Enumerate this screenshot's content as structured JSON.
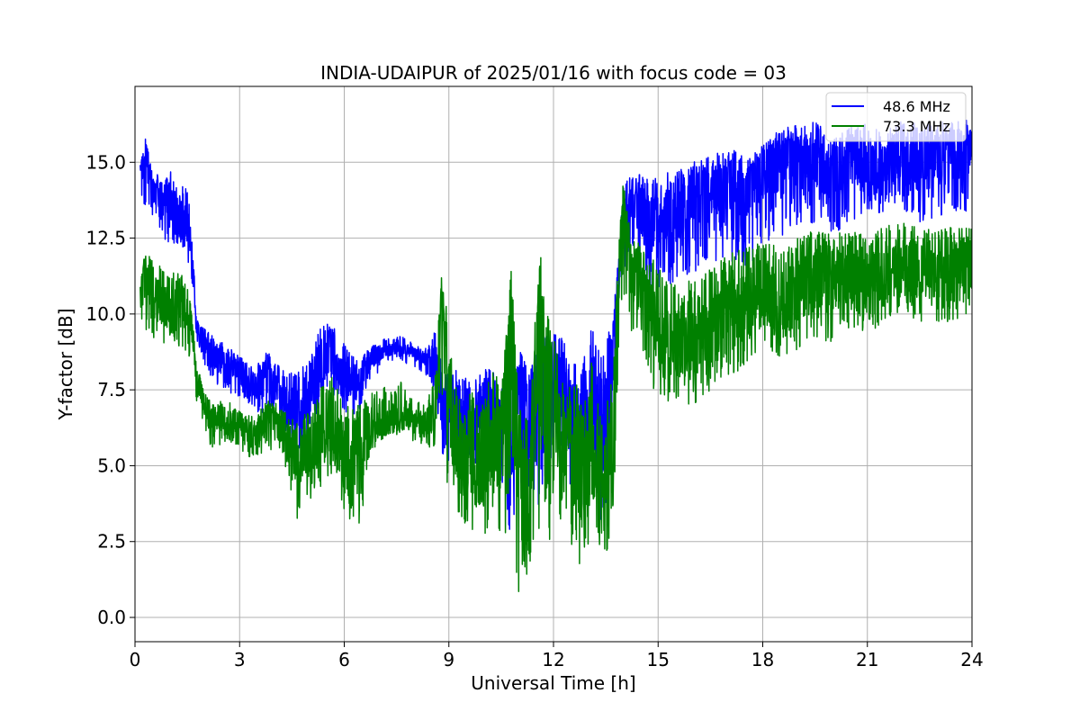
{
  "chart_data": {
    "type": "line",
    "title": "INDIA-UDAIPUR of 2025/01/16 with focus code = 03",
    "xlabel": "Universal Time [h]",
    "ylabel": "Y-factor [dB]",
    "xlim": [
      0,
      24
    ],
    "ylim": [
      -0.8,
      17.5
    ],
    "xticks": [
      0,
      3,
      6,
      9,
      12,
      15,
      18,
      21,
      24
    ],
    "xtick_labels": [
      "0",
      "3",
      "6",
      "9",
      "12",
      "15",
      "18",
      "21",
      "24"
    ],
    "yticks": [
      0,
      2.5,
      5,
      7.5,
      10,
      12.5,
      15
    ],
    "ytick_labels": [
      "0.0",
      "2.5",
      "5.0",
      "7.5",
      "10.0",
      "12.5",
      "15.0"
    ],
    "grid": true,
    "legend_position": "top-right",
    "series": [
      {
        "name": "48.6 MHz",
        "color": "#0000ff",
        "x": [
          0.15,
          0.3,
          0.5,
          0.8,
          1.0,
          1.2,
          1.4,
          1.6,
          1.75,
          1.9,
          2.2,
          2.6,
          3.0,
          3.4,
          3.8,
          4.2,
          4.6,
          5.0,
          5.3,
          5.6,
          6.0,
          6.4,
          6.8,
          7.2,
          7.6,
          8.0,
          8.3,
          8.6,
          8.8,
          9.0,
          9.3,
          9.6,
          9.9,
          10.2,
          10.5,
          10.8,
          11.0,
          11.3,
          11.6,
          11.9,
          12.2,
          12.5,
          12.8,
          13.1,
          13.4,
          13.7,
          13.9,
          14.0,
          14.2,
          14.5,
          15.0,
          15.5,
          16.0,
          16.5,
          17.0,
          17.5,
          18.0,
          18.5,
          19.0,
          19.5,
          20.0,
          20.5,
          21.0,
          21.5,
          22.0,
          22.5,
          23.0,
          23.5,
          24.0
        ],
        "values": [
          14.5,
          15.3,
          14.0,
          13.5,
          13.8,
          13.0,
          13.2,
          12.5,
          9.8,
          9.2,
          8.6,
          8.4,
          8.0,
          7.6,
          7.8,
          7.4,
          6.5,
          7.2,
          8.1,
          8.5,
          8.0,
          7.6,
          8.5,
          8.8,
          8.9,
          8.7,
          8.5,
          8.6,
          7.0,
          6.8,
          6.9,
          6.3,
          6.7,
          6.9,
          6.0,
          4.8,
          7.0,
          5.8,
          8.0,
          7.2,
          7.6,
          6.4,
          6.0,
          7.5,
          5.5,
          8.3,
          12.0,
          13.2,
          13.5,
          13.3,
          12.8,
          13.5,
          14.0,
          13.8,
          14.4,
          14.0,
          14.7,
          15.2,
          15.4,
          14.8,
          14.6,
          15.2,
          14.5,
          14.9,
          15.3,
          14.7,
          15.2,
          15.0,
          15.4
        ],
        "band_low": [
          14.0,
          13.2,
          12.8,
          12.5,
          12.3,
          12.0,
          11.8,
          11.5,
          9.2,
          8.6,
          7.8,
          7.5,
          7.2,
          6.8,
          6.6,
          6.5,
          5.2,
          6.0,
          7.0,
          7.5,
          6.8,
          6.5,
          7.8,
          8.4,
          8.5,
          8.2,
          8.0,
          7.5,
          5.5,
          4.5,
          5.0,
          4.8,
          5.0,
          5.2,
          4.5,
          2.5,
          3.5,
          3.8,
          3.5,
          4.5,
          4.8,
          3.0,
          3.5,
          3.5,
          3.0,
          5.0,
          11.0,
          11.5,
          11.5,
          11.0,
          10.8,
          11.0,
          11.3,
          11.5,
          11.8,
          11.5,
          12.0,
          12.5,
          12.8,
          13.0,
          12.5,
          13.0,
          13.2,
          13.3,
          13.4,
          13.0,
          13.2,
          13.3,
          13.4
        ],
        "band_high": [
          15.0,
          15.7,
          14.8,
          14.5,
          14.8,
          14.2,
          14.3,
          13.8,
          10.0,
          9.6,
          9.3,
          9.0,
          8.6,
          8.2,
          8.8,
          8.2,
          8.0,
          8.5,
          9.5,
          9.8,
          9.0,
          8.4,
          9.0,
          9.2,
          9.3,
          9.0,
          8.8,
          9.5,
          8.3,
          8.0,
          8.2,
          7.8,
          8.0,
          8.4,
          7.5,
          8.5,
          9.0,
          8.0,
          9.5,
          9.2,
          9.5,
          8.5,
          8.2,
          9.8,
          8.5,
          10.0,
          12.5,
          14.3,
          14.5,
          14.7,
          14.5,
          14.8,
          15.0,
          15.2,
          15.5,
          15.3,
          15.6,
          16.0,
          16.2,
          16.4,
          15.8,
          16.2,
          16.3,
          16.0,
          16.5,
          16.2,
          16.4,
          16.3,
          16.5
        ]
      },
      {
        "name": "73.3 MHz",
        "color": "#008000",
        "x": [
          0.15,
          0.3,
          0.5,
          0.8,
          1.0,
          1.2,
          1.4,
          1.6,
          1.75,
          1.9,
          2.2,
          2.6,
          3.0,
          3.4,
          3.8,
          4.2,
          4.6,
          5.0,
          5.3,
          5.6,
          6.0,
          6.4,
          6.8,
          7.2,
          7.6,
          8.0,
          8.3,
          8.6,
          8.8,
          9.0,
          9.3,
          9.6,
          9.9,
          10.2,
          10.5,
          10.8,
          11.0,
          11.3,
          11.6,
          11.9,
          12.2,
          12.5,
          12.8,
          13.1,
          13.4,
          13.7,
          13.9,
          14.0,
          14.2,
          14.5,
          15.0,
          15.5,
          16.0,
          16.5,
          17.0,
          17.5,
          18.0,
          18.5,
          19.0,
          19.5,
          20.0,
          20.5,
          21.0,
          21.5,
          22.0,
          22.5,
          23.0,
          23.5,
          24.0
        ],
        "values": [
          10.8,
          11.5,
          10.5,
          10.3,
          10.0,
          10.4,
          10.1,
          9.8,
          8.0,
          7.2,
          6.5,
          6.6,
          6.2,
          6.0,
          6.5,
          6.2,
          5.0,
          5.5,
          6.0,
          6.3,
          5.0,
          4.8,
          6.2,
          6.4,
          6.6,
          6.5,
          6.3,
          6.6,
          10.0,
          7.0,
          5.0,
          5.2,
          4.8,
          5.5,
          5.0,
          9.5,
          4.0,
          3.5,
          10.5,
          7.0,
          5.8,
          5.5,
          4.5,
          5.0,
          4.5,
          5.0,
          12.0,
          13.5,
          11.5,
          10.8,
          9.5,
          9.0,
          8.8,
          9.5,
          10.0,
          10.2,
          10.5,
          10.0,
          10.6,
          11.0,
          10.8,
          11.2,
          11.0,
          11.3,
          11.5,
          11.4,
          11.2,
          11.5,
          11.4
        ],
        "band_low": [
          10.0,
          9.2,
          9.0,
          8.8,
          8.6,
          9.0,
          8.8,
          8.5,
          7.2,
          6.6,
          5.5,
          5.8,
          5.4,
          5.2,
          5.5,
          5.5,
          3.0,
          3.8,
          4.2,
          4.8,
          3.0,
          2.5,
          5.5,
          6.0,
          6.0,
          5.8,
          5.6,
          5.5,
          7.0,
          3.5,
          3.2,
          3.0,
          2.5,
          3.0,
          2.8,
          1.0,
          0.5,
          1.5,
          3.0,
          2.5,
          3.0,
          2.0,
          1.5,
          2.5,
          2.0,
          2.5,
          10.0,
          10.5,
          9.5,
          8.5,
          7.2,
          7.0,
          7.0,
          7.5,
          8.0,
          8.2,
          8.5,
          8.5,
          8.8,
          9.2,
          9.0,
          9.5,
          9.4,
          9.6,
          9.8,
          9.7,
          9.6,
          9.8,
          9.8
        ],
        "band_high": [
          11.3,
          12.2,
          11.8,
          11.5,
          11.2,
          11.5,
          11.2,
          10.5,
          8.5,
          7.8,
          7.0,
          7.2,
          6.8,
          6.6,
          7.2,
          7.0,
          6.5,
          6.8,
          7.5,
          8.0,
          7.2,
          7.0,
          7.5,
          7.6,
          7.8,
          7.2,
          7.0,
          8.0,
          11.5,
          9.5,
          7.2,
          7.5,
          7.2,
          8.5,
          7.5,
          11.5,
          7.0,
          7.0,
          11.8,
          10.0,
          8.2,
          8.0,
          7.5,
          8.5,
          7.0,
          8.0,
          13.0,
          14.2,
          13.0,
          12.5,
          11.5,
          11.0,
          11.2,
          11.5,
          12.0,
          12.3,
          12.4,
          12.2,
          12.5,
          12.8,
          12.6,
          12.8,
          12.6,
          12.9,
          13.0,
          12.9,
          12.8,
          12.9,
          12.8
        ]
      }
    ]
  }
}
